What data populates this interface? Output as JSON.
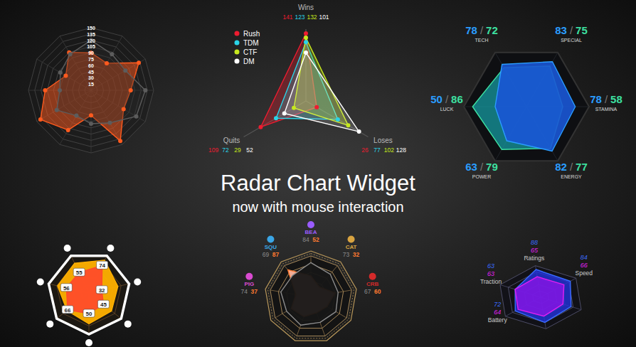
{
  "title": "Radar Chart Widget",
  "subtitle": "now with mouse interaction",
  "chart_data": [
    {
      "type": "radar",
      "categories": [
        null,
        null,
        null,
        null,
        null,
        null,
        null,
        null,
        null,
        null,
        null,
        null
      ],
      "ylim": [
        0,
        150
      ],
      "yticks": [
        15,
        30,
        45,
        60,
        75,
        90,
        105,
        120,
        135,
        150
      ],
      "grid": true,
      "series": [
        {
          "color": "#ff5a1e",
          "marker": "circle",
          "values": [
            90,
            75,
            132,
            95,
            90,
            140,
            60,
            110,
            140,
            110,
            70,
            105
          ]
        },
        {
          "color": "#5c5c5c",
          "marker": "circle",
          "values": [
            120,
            100,
            95,
            130,
            125,
            90,
            80,
            70,
            95,
            75,
            85,
            100
          ]
        }
      ]
    },
    {
      "type": "radar",
      "categories": [
        "Wins",
        "Loses",
        "Quits"
      ],
      "ylim": [
        0,
        150
      ],
      "legend": "top-left",
      "data_labels": true,
      "series": [
        {
          "name": "Rush",
          "color": "#ee1c30",
          "marker": "circle",
          "values": [
            141,
            26,
            109
          ]
        },
        {
          "name": "TDM",
          "color": "#2ad4e8",
          "marker": "circle",
          "values": [
            123,
            77,
            72
          ]
        },
        {
          "name": "CTF",
          "color": "#c6e81e",
          "marker": "circle",
          "values": [
            132,
            102,
            29
          ]
        },
        {
          "name": "DM",
          "color": "#ffffff",
          "marker": "circle",
          "values": [
            101,
            128,
            52
          ]
        }
      ]
    },
    {
      "type": "radar",
      "categories": [
        "TECH",
        "SPECIAL",
        "STAMINA",
        "ENERGY",
        "POWER",
        "LUCK"
      ],
      "ylim": [
        0,
        100
      ],
      "data_labels": true,
      "separator": "/",
      "series": [
        {
          "color": "#2a9dff",
          "values": [
            78,
            83,
            78,
            82,
            63,
            50
          ]
        },
        {
          "color": "#3de0a0",
          "values": [
            72,
            75,
            58,
            77,
            79,
            86
          ]
        }
      ]
    },
    {
      "type": "radar",
      "categories": [
        null,
        null,
        null,
        null,
        null,
        null,
        null
      ],
      "ylim": [
        0,
        100
      ],
      "yticks": [
        20,
        40,
        60,
        80,
        100
      ],
      "grid": true,
      "tick_labels": false,
      "series": [
        {
          "color": "#ffb000",
          "values": [
            80,
            88,
            72,
            70,
            75,
            68,
            78
          ]
        },
        {
          "color": "#ff4a2a",
          "data_labels": true,
          "values": [
            55,
            74,
            32,
            45,
            50,
            66,
            56
          ]
        }
      ]
    },
    {
      "type": "radar",
      "categories": [
        "BEA",
        "CAT",
        "CRB",
        null,
        null,
        null,
        null,
        "PIG",
        "SQU"
      ],
      "ylim": [
        0,
        100
      ],
      "yticks": [
        20,
        40,
        60,
        80,
        100
      ],
      "grid": true,
      "tick_labels": false,
      "data_labels": true,
      "series": [
        {
          "color": "#8c8c8c",
          "values": [
            84,
            73,
            67,
            70,
            65,
            72,
            68,
            74,
            69
          ]
        },
        {
          "color": "#ff7a30",
          "values": [
            52,
            32,
            60,
            45,
            40,
            50,
            55,
            37,
            87
          ]
        }
      ]
    },
    {
      "type": "radar",
      "categories": [
        "Ratings",
        "Speed",
        null,
        null,
        "Battery",
        "Traction"
      ],
      "ylim": [
        0,
        100
      ],
      "yticks": [
        20,
        40,
        60,
        80,
        100
      ],
      "grid": true,
      "tick_labels": false,
      "data_labels": true,
      "series": [
        {
          "color": "#3a6bff",
          "values": [
            88,
            84,
            75,
            80,
            72,
            63
          ]
        },
        {
          "color": "#e020f0",
          "values": [
            65,
            66,
            55,
            60,
            64,
            63
          ]
        }
      ]
    }
  ]
}
